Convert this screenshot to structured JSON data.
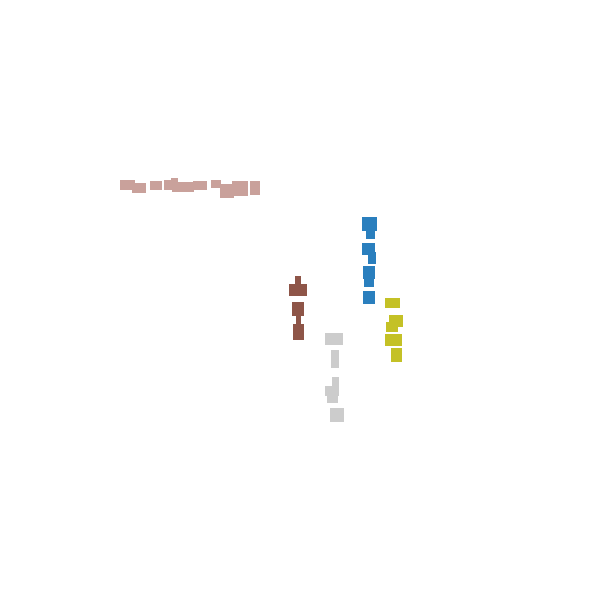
{
  "colors": {
    "background": "#ffffff",
    "rose": "#c9a19b",
    "blue": "#2a7fbe",
    "olive": "#c4c126",
    "brown": "#8e5548",
    "gray": "#cccccc"
  },
  "groups": [
    {
      "name": "rose-stroke-group",
      "color_key": "rose"
    },
    {
      "name": "blue-column-group",
      "color_key": "blue"
    },
    {
      "name": "olive-column-group",
      "color_key": "olive"
    },
    {
      "name": "brown-column-group",
      "color_key": "brown"
    },
    {
      "name": "gray-column-group",
      "color_key": "gray"
    }
  ]
}
